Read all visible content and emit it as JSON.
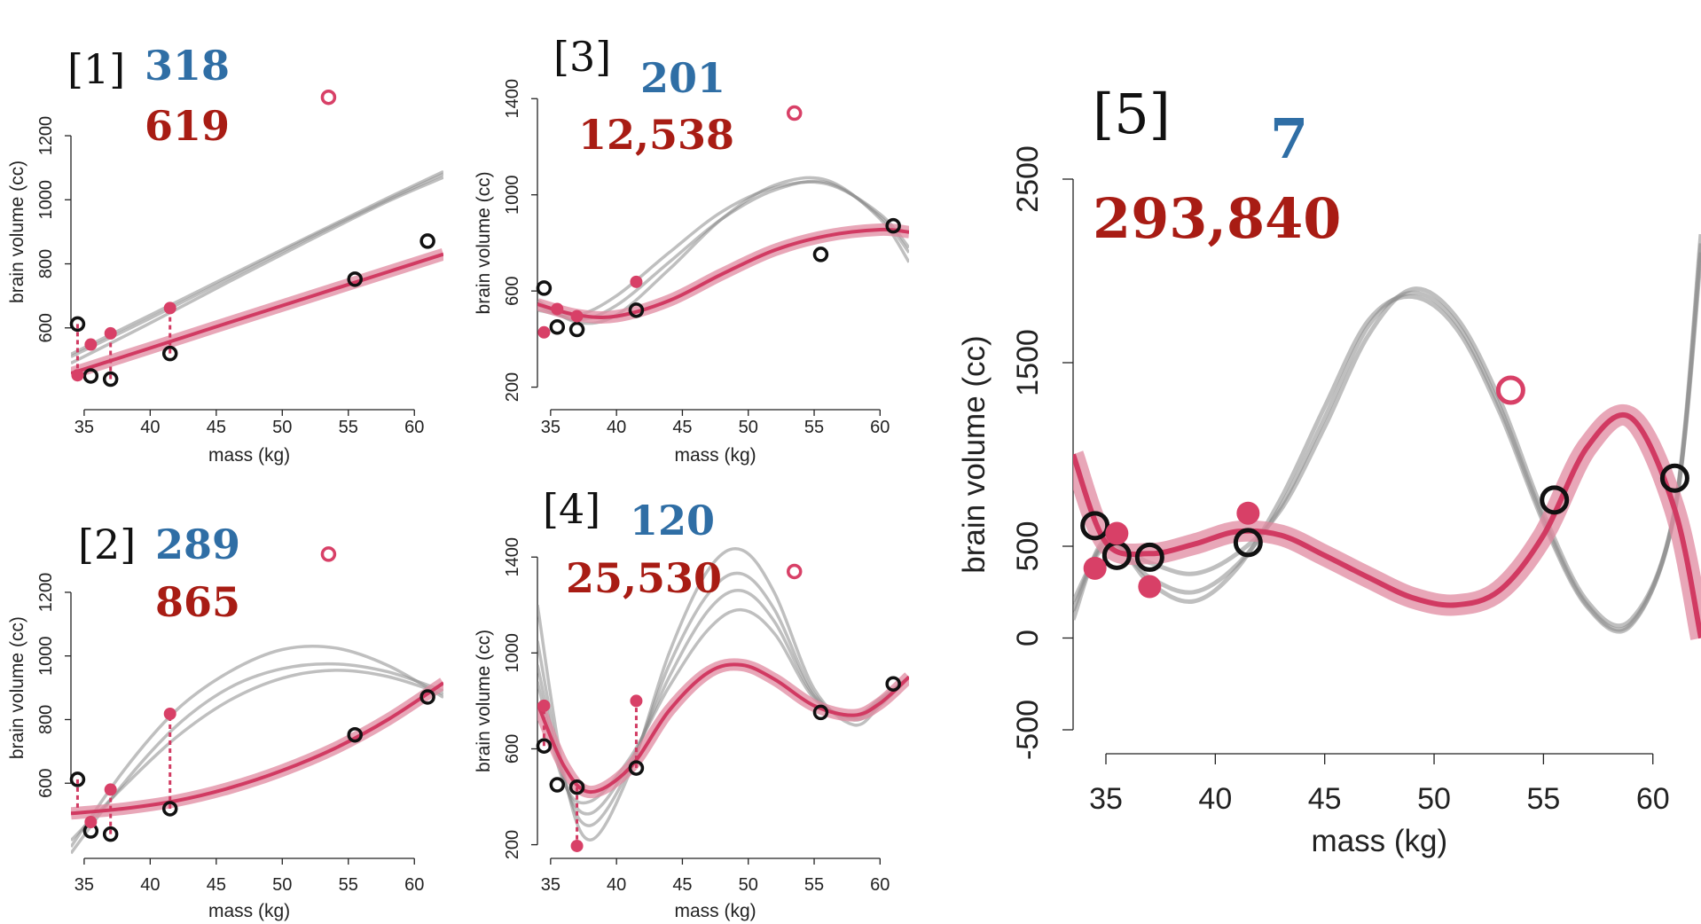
{
  "chart_data": [
    {
      "type": "line",
      "panel": "[1]",
      "score_blue": "318",
      "score_red": "619",
      "xlabel": "mass (kg)",
      "ylabel": "brain volume (cc)",
      "xlim": [
        34,
        62.2
      ],
      "ylim": [
        400,
        1250
      ],
      "xticks": [
        35,
        40,
        45,
        50,
        55,
        60
      ],
      "yticks": [
        600,
        800,
        1000,
        1200
      ],
      "points": {
        "x": [
          34.5,
          35.5,
          37.0,
          41.5,
          55.5,
          61.0
        ],
        "y": [
          612,
          450,
          440,
          520,
          752,
          871
        ]
      },
      "test_point": {
        "x": 53.5,
        "y": 1320
      },
      "fit_points": [
        {
          "x": 34.5,
          "y": 452
        },
        {
          "x": 35.5,
          "y": 548
        },
        {
          "x": 37.0,
          "y": 583
        },
        {
          "x": 41.5,
          "y": 662
        }
      ],
      "residuals": [
        {
          "x": 34.5,
          "y0": 612,
          "y1": 452
        },
        {
          "x": 37.0,
          "y0": 440,
          "y1": 583
        },
        {
          "x": 41.5,
          "y0": 520,
          "y1": 662
        }
      ],
      "red_curve": {
        "x": [
          34,
          40,
          46,
          52,
          58,
          62.2
        ],
        "y": [
          458,
          537,
          617,
          696,
          775,
          830
        ]
      },
      "gray_curves": [
        {
          "x": [
            34,
            40,
            46,
            52,
            58,
            62.2
          ],
          "y": [
            518,
            640,
            763,
            885,
            1006,
            1088
          ]
        },
        {
          "x": [
            34,
            40,
            46,
            52,
            58,
            62.2
          ],
          "y": [
            510,
            630,
            755,
            880,
            1000,
            1080
          ]
        },
        {
          "x": [
            34,
            40,
            46,
            52,
            58,
            62.2
          ],
          "y": [
            490,
            615,
            745,
            872,
            995,
            1070
          ]
        }
      ]
    },
    {
      "type": "line",
      "panel": "[2]",
      "score_blue": "289",
      "score_red": "865",
      "xlabel": "mass (kg)",
      "ylabel": "brain volume (cc)",
      "xlim": [
        34,
        62.2
      ],
      "ylim": [
        400,
        1250
      ],
      "xticks": [
        35,
        40,
        45,
        50,
        55,
        60
      ],
      "yticks": [
        600,
        800,
        1000,
        1200
      ],
      "points": {
        "x": [
          34.5,
          35.5,
          37.0,
          41.5,
          55.5,
          61.0
        ],
        "y": [
          612,
          450,
          440,
          520,
          752,
          871
        ]
      },
      "test_point": {
        "x": 53.5,
        "y": 1320
      },
      "fit_points": [
        {
          "x": 35.5,
          "y": 478
        },
        {
          "x": 37.0,
          "y": 580
        },
        {
          "x": 41.5,
          "y": 818
        }
      ],
      "residuals": [
        {
          "x": 34.5,
          "y0": 612,
          "y1": 505
        },
        {
          "x": 37.0,
          "y0": 440,
          "y1": 580
        },
        {
          "x": 41.5,
          "y0": 520,
          "y1": 818
        }
      ],
      "red_curve": {
        "x": [
          34,
          38,
          42,
          46,
          50,
          54,
          58,
          62.2
        ],
        "y": [
          505,
          520,
          545,
          585,
          640,
          710,
          800,
          915
        ]
      },
      "gray_curves": [
        {
          "x": [
            34,
            38,
            42,
            46,
            50,
            54,
            58,
            62.2
          ],
          "y": [
            400,
            640,
            830,
            950,
            1020,
            1025,
            970,
            870
          ]
        },
        {
          "x": [
            34,
            38,
            42,
            46,
            50,
            54,
            58,
            62.2
          ],
          "y": [
            380,
            600,
            780,
            900,
            960,
            975,
            950,
            890
          ]
        },
        {
          "x": [
            34,
            38,
            42,
            46,
            50,
            54,
            58,
            62.2
          ],
          "y": [
            420,
            590,
            745,
            860,
            930,
            955,
            935,
            880
          ]
        }
      ]
    },
    {
      "type": "line",
      "panel": "[3]",
      "score_blue": "201",
      "score_red": "12,538",
      "xlabel": "mass (kg)",
      "ylabel": "brain volume (cc)",
      "xlim": [
        34,
        62.2
      ],
      "ylim": [
        180,
        1460
      ],
      "xticks": [
        35,
        40,
        45,
        50,
        55,
        60
      ],
      "yticks": [
        200,
        600,
        1000,
        1400
      ],
      "points": {
        "x": [
          34.5,
          35.5,
          37.0,
          41.5,
          55.5,
          61.0
        ],
        "y": [
          612,
          450,
          440,
          520,
          752,
          871
        ]
      },
      "test_point": {
        "x": 53.5,
        "y": 1340
      },
      "fit_points": [
        {
          "x": 34.5,
          "y": 428
        },
        {
          "x": 35.5,
          "y": 525
        },
        {
          "x": 37.0,
          "y": 495
        },
        {
          "x": 41.5,
          "y": 638
        }
      ],
      "residuals": [],
      "red_curve": {
        "x": [
          34,
          37,
          40,
          44,
          48,
          52,
          56,
          60,
          62.2
        ],
        "y": [
          545,
          500,
          495,
          560,
          670,
          770,
          830,
          855,
          845
        ]
      },
      "gray_curves": [
        {
          "x": [
            34,
            37,
            40,
            44,
            48,
            52,
            56,
            60,
            62.2
          ],
          "y": [
            560,
            470,
            500,
            690,
            900,
            1040,
            1060,
            900,
            720
          ]
        },
        {
          "x": [
            34,
            37,
            40,
            44,
            48,
            52,
            56,
            60,
            62.2
          ],
          "y": [
            540,
            480,
            540,
            720,
            900,
            1020,
            1050,
            910,
            760
          ]
        },
        {
          "x": [
            34,
            37,
            40,
            44,
            48,
            52,
            56,
            60,
            62.2
          ],
          "y": [
            520,
            500,
            580,
            760,
            930,
            1030,
            1045,
            920,
            780
          ]
        }
      ]
    },
    {
      "type": "line",
      "panel": "[4]",
      "score_blue": "120",
      "score_red": "25,530",
      "xlabel": "mass (kg)",
      "ylabel": "brain volume (cc)",
      "xlim": [
        34,
        62.2
      ],
      "ylim": [
        180,
        1460
      ],
      "xticks": [
        35,
        40,
        45,
        50,
        55,
        60
      ],
      "yticks": [
        200,
        600,
        1000,
        1400
      ],
      "points": {
        "x": [
          34.5,
          35.5,
          37.0,
          41.5,
          55.5,
          61.0
        ],
        "y": [
          612,
          450,
          440,
          520,
          752,
          871
        ]
      },
      "test_point": {
        "x": 53.5,
        "y": 1340
      },
      "fit_points": [
        {
          "x": 34.5,
          "y": 780
        },
        {
          "x": 37.0,
          "y": 195
        },
        {
          "x": 41.5,
          "y": 800
        }
      ],
      "residuals": [
        {
          "x": 34.5,
          "y0": 612,
          "y1": 780
        },
        {
          "x": 37.0,
          "y0": 440,
          "y1": 195
        },
        {
          "x": 41.5,
          "y0": 520,
          "y1": 800
        }
      ],
      "red_curve": {
        "x": [
          34,
          36,
          38,
          41,
          44,
          47,
          49.5,
          52,
          55,
          58,
          60,
          62.2
        ],
        "y": [
          790,
          530,
          420,
          520,
          760,
          920,
          950,
          890,
          780,
          740,
          790,
          900
        ]
      },
      "gray_curves": [
        {
          "x": [
            34,
            36,
            38,
            41,
            44,
            47,
            49.5,
            52,
            55,
            58,
            60,
            62.2
          ],
          "y": [
            1200,
            500,
            220,
            500,
            1000,
            1350,
            1430,
            1250,
            850,
            700,
            780,
            900
          ]
        },
        {
          "x": [
            34,
            36,
            38,
            41,
            44,
            47,
            49.5,
            52,
            55,
            58,
            60,
            62.2
          ],
          "y": [
            1050,
            480,
            280,
            520,
            950,
            1250,
            1330,
            1180,
            830,
            720,
            790,
            900
          ]
        },
        {
          "x": [
            34,
            36,
            38,
            41,
            44,
            47,
            49.5,
            52,
            55,
            58,
            60,
            62.2
          ],
          "y": [
            950,
            470,
            330,
            540,
            900,
            1180,
            1260,
            1130,
            820,
            730,
            800,
            900
          ]
        },
        {
          "x": [
            34,
            36,
            38,
            41,
            44,
            47,
            49.5,
            52,
            55,
            58,
            60,
            62.2
          ],
          "y": [
            880,
            460,
            380,
            560,
            860,
            1100,
            1180,
            1080,
            810,
            740,
            810,
            900
          ]
        }
      ]
    },
    {
      "type": "line",
      "panel": "[5]",
      "score_blue": "7",
      "score_red": "293,840",
      "xlabel": "mass (kg)",
      "ylabel": "brain volume (cc)",
      "xlim": [
        33.5,
        62.2
      ],
      "ylim": [
        -500,
        2500
      ],
      "xticks": [
        35,
        40,
        45,
        50,
        55,
        60
      ],
      "yticks": [
        -500,
        0,
        500,
        1500,
        2500
      ],
      "points": {
        "x": [
          34.5,
          35.5,
          37.0,
          41.5,
          55.5,
          61.0
        ],
        "y": [
          612,
          450,
          440,
          520,
          752,
          871
        ]
      },
      "test_point": {
        "x": 53.5,
        "y": 1350
      },
      "fit_points": [
        {
          "x": 34.5,
          "y": 380
        },
        {
          "x": 35.5,
          "y": 570
        },
        {
          "x": 37.0,
          "y": 280
        },
        {
          "x": 41.5,
          "y": 680
        }
      ],
      "residuals": [],
      "red_curve": {
        "x": [
          33.5,
          35,
          37,
          39,
          41,
          43,
          45,
          47,
          49,
          51,
          53,
          55,
          57,
          59,
          61,
          62.2
        ],
        "y": [
          1000,
          520,
          460,
          510,
          580,
          560,
          450,
          330,
          220,
          180,
          260,
          560,
          1040,
          1200,
          700,
          0
        ]
      },
      "gray_curves": [
        {
          "x": [
            33.5,
            35,
            37,
            39,
            41,
            43,
            45,
            47,
            49,
            51,
            53,
            55,
            57,
            59,
            61,
            62.2
          ],
          "y": [
            200,
            500,
            410,
            350,
            460,
            700,
            1150,
            1650,
            1900,
            1750,
            1300,
            680,
            200,
            100,
            700,
            2200
          ]
        },
        {
          "x": [
            33.5,
            35,
            37,
            39,
            41,
            43,
            45,
            47,
            49,
            51,
            53,
            55,
            57,
            59,
            61,
            62.2
          ],
          "y": [
            150,
            520,
            330,
            250,
            400,
            720,
            1200,
            1700,
            1880,
            1720,
            1260,
            650,
            180,
            80,
            690,
            2150
          ]
        },
        {
          "x": [
            33.5,
            35,
            37,
            39,
            41,
            43,
            45,
            47,
            49,
            51,
            53,
            55,
            57,
            59,
            61,
            62.2
          ],
          "y": [
            100,
            540,
            300,
            200,
            380,
            760,
            1260,
            1730,
            1860,
            1690,
            1230,
            630,
            170,
            70,
            690,
            2100
          ]
        }
      ]
    }
  ]
}
